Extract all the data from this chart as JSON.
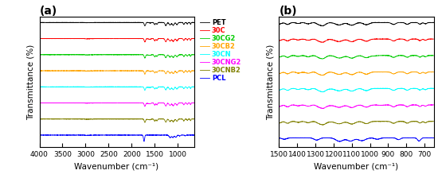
{
  "labels": [
    "PET",
    "30C",
    "30CG2",
    "30CB2",
    "30CN",
    "30CNG2",
    "30CNB2",
    "PCL"
  ],
  "colors": [
    "black",
    "red",
    "#00cc00",
    "orange",
    "cyan",
    "magenta",
    "#808000",
    "blue"
  ],
  "panel_a": {
    "title": "(a)",
    "xlabel": "Wavenumber (cm⁻¹)",
    "ylabel": "Transmittance (%)",
    "xmin": 4000,
    "xmax": 650,
    "xticks": [
      4000,
      3500,
      3000,
      2500,
      2000,
      1500,
      1000
    ],
    "offsets": [
      7.5,
      6.4,
      5.3,
      4.2,
      3.1,
      2.0,
      0.9,
      -0.2
    ]
  },
  "panel_b": {
    "title": "(b)",
    "xlabel": "Wavenumber (cm⁻¹)",
    "ylabel": "Transmittance (%)",
    "xmin": 1500,
    "xmax": 650,
    "xticks": [
      1500,
      1400,
      1300,
      1200,
      1100,
      1000,
      900,
      800,
      700
    ],
    "offsets": [
      7.5,
      6.4,
      5.3,
      4.2,
      3.1,
      2.0,
      0.9,
      -0.2
    ]
  },
  "background_color": "white",
  "legend_fontsize": 6.0,
  "axis_label_fontsize": 7.5,
  "tick_fontsize": 6.5,
  "title_fontsize": 10
}
